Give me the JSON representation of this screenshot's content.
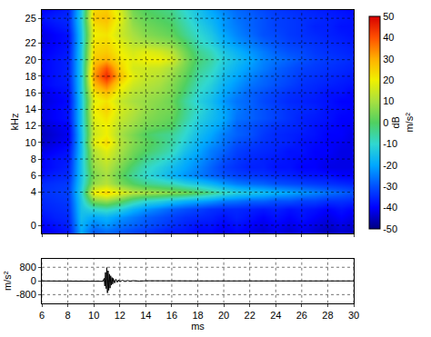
{
  "chart_data": [
    {
      "type": "heatmap",
      "ylabel": "kHz",
      "tick_labels": "y",
      "grid": true,
      "x": [
        6,
        7,
        8,
        9,
        10,
        11,
        12,
        13,
        14,
        15,
        16,
        17,
        18,
        19,
        20,
        21,
        22,
        23,
        24,
        25,
        26,
        27,
        28,
        29,
        30
      ],
      "y": [
        -1,
        0,
        1,
        2,
        3,
        4,
        5,
        6,
        7,
        8,
        9,
        10,
        11,
        12,
        13,
        14,
        15,
        16,
        17,
        18,
        19,
        20,
        21,
        22,
        23,
        24,
        25,
        26
      ],
      "z": [
        [
          -42,
          -40,
          -38,
          -20,
          -30,
          -28,
          -30,
          -32,
          -34,
          -36,
          -38,
          -38,
          -40,
          -40,
          -42,
          -40,
          -42,
          -44,
          -42,
          -44,
          -42,
          -44,
          -46,
          -44,
          -45
        ],
        [
          -40,
          -38,
          -36,
          -18,
          -25,
          -22,
          -26,
          -28,
          -30,
          -32,
          -34,
          -36,
          -38,
          -38,
          -40,
          -38,
          -40,
          -42,
          -40,
          -42,
          -40,
          -42,
          -44,
          -42,
          -44
        ],
        [
          -38,
          -36,
          -35,
          -16,
          -20,
          -18,
          -22,
          -25,
          -28,
          -30,
          -32,
          -34,
          -35,
          -36,
          -38,
          -36,
          -38,
          -40,
          -38,
          -40,
          -38,
          -40,
          -42,
          -40,
          -42
        ],
        [
          -36,
          -35,
          -34,
          -15,
          -10,
          -8,
          -12,
          -18,
          -22,
          -25,
          -28,
          -30,
          -32,
          -34,
          -35,
          -35,
          -36,
          -37,
          -36,
          -38,
          -37,
          -38,
          -40,
          -38,
          -40
        ],
        [
          -35,
          -34,
          -33,
          -14,
          5,
          8,
          2,
          -5,
          -10,
          -12,
          -15,
          -18,
          -20,
          -22,
          -25,
          -26,
          -28,
          -28,
          -30,
          -30,
          -32,
          -32,
          -34,
          -34,
          -35
        ],
        [
          -34,
          -33,
          -32,
          -12,
          20,
          25,
          18,
          12,
          10,
          8,
          6,
          4,
          0,
          -4,
          -8,
          -12,
          -14,
          -16,
          -18,
          -20,
          -22,
          -24,
          -26,
          -28,
          -30
        ],
        [
          -35,
          -34,
          -33,
          -14,
          8,
          12,
          5,
          0,
          -4,
          -6,
          -8,
          -12,
          -15,
          -18,
          -22,
          -25,
          -27,
          -28,
          -30,
          -31,
          -32,
          -33,
          -34,
          -35,
          -36
        ],
        [
          -38,
          -36,
          -35,
          -15,
          5,
          10,
          2,
          -5,
          -10,
          -14,
          -18,
          -22,
          -25,
          -28,
          -30,
          -32,
          -33,
          -34,
          -35,
          -36,
          -37,
          -38,
          -38,
          -40,
          -40
        ],
        [
          -40,
          -38,
          -36,
          -15,
          8,
          12,
          5,
          -2,
          -8,
          -12,
          -16,
          -20,
          -24,
          -28,
          -32,
          -34,
          -36,
          -36,
          -38,
          -38,
          -40,
          -40,
          -42,
          -42,
          -42
        ],
        [
          -40,
          -38,
          -37,
          -15,
          10,
          15,
          8,
          2,
          -4,
          -8,
          -12,
          -18,
          -22,
          -26,
          -30,
          -33,
          -35,
          -36,
          -37,
          -38,
          -39,
          -40,
          -41,
          -42,
          -42
        ],
        [
          -42,
          -40,
          -38,
          -16,
          12,
          18,
          10,
          4,
          0,
          -4,
          -8,
          -15,
          -20,
          -25,
          -28,
          -32,
          -34,
          -35,
          -36,
          -38,
          -38,
          -40,
          -40,
          -42,
          -42
        ],
        [
          -44,
          -42,
          -40,
          -16,
          18,
          24,
          12,
          6,
          2,
          -2,
          -6,
          -12,
          -18,
          -22,
          -26,
          -30,
          -32,
          -34,
          -35,
          -36,
          -38,
          -39,
          -40,
          -41,
          -42
        ],
        [
          -45,
          -43,
          -41,
          -16,
          15,
          20,
          10,
          5,
          0,
          -3,
          -5,
          -10,
          -16,
          -20,
          -25,
          -28,
          -30,
          -33,
          -35,
          -36,
          -37,
          -38,
          -40,
          -40,
          -42
        ],
        [
          -44,
          -42,
          -40,
          -15,
          16,
          20,
          12,
          8,
          4,
          2,
          0,
          -8,
          -14,
          -18,
          -22,
          -28,
          -30,
          -32,
          -34,
          -35,
          -36,
          -38,
          -39,
          -40,
          -41
        ],
        [
          -42,
          -40,
          -38,
          -15,
          18,
          22,
          14,
          10,
          6,
          4,
          2,
          -5,
          -12,
          -16,
          -20,
          -26,
          -28,
          -30,
          -32,
          -34,
          -36,
          -37,
          -38,
          -40,
          -40
        ],
        [
          -42,
          -40,
          -38,
          -15,
          20,
          25,
          16,
          12,
          8,
          5,
          4,
          -4,
          -10,
          -15,
          -20,
          -25,
          -28,
          -30,
          -32,
          -34,
          -35,
          -36,
          -38,
          -39,
          -40
        ],
        [
          -43,
          -41,
          -39,
          -15,
          18,
          22,
          14,
          10,
          8,
          6,
          3,
          -5,
          -12,
          -16,
          -22,
          -26,
          -28,
          -31,
          -33,
          -35,
          -36,
          -37,
          -38,
          -40,
          -40
        ],
        [
          -42,
          -40,
          -38,
          -14,
          22,
          28,
          18,
          12,
          10,
          8,
          5,
          -2,
          -10,
          -14,
          -20,
          -24,
          -28,
          -30,
          -32,
          -34,
          -35,
          -36,
          -38,
          -38,
          -40
        ],
        [
          -40,
          -38,
          -37,
          -14,
          28,
          36,
          22,
          15,
          12,
          10,
          6,
          0,
          -8,
          -12,
          -18,
          -22,
          -26,
          -28,
          -30,
          -32,
          -34,
          -35,
          -36,
          -37,
          -38
        ],
        [
          -40,
          -38,
          -36,
          -14,
          32,
          45,
          28,
          18,
          14,
          12,
          8,
          2,
          -6,
          -10,
          -16,
          -20,
          -24,
          -27,
          -29,
          -31,
          -33,
          -34,
          -35,
          -36,
          -37
        ],
        [
          -40,
          -38,
          -36,
          -14,
          30,
          40,
          25,
          16,
          15,
          14,
          10,
          4,
          -4,
          -8,
          -14,
          -18,
          -22,
          -25,
          -28,
          -30,
          -32,
          -33,
          -34,
          -35,
          -36
        ],
        [
          -40,
          -38,
          -36,
          -14,
          26,
          30,
          22,
          18,
          20,
          20,
          16,
          6,
          -2,
          -6,
          -12,
          -16,
          -20,
          -24,
          -26,
          -28,
          -30,
          -32,
          -33,
          -34,
          -35
        ],
        [
          -41,
          -39,
          -37,
          -14,
          24,
          26,
          20,
          16,
          18,
          16,
          12,
          4,
          -4,
          -8,
          -14,
          -18,
          -22,
          -25,
          -28,
          -30,
          -31,
          -33,
          -34,
          -35,
          -36
        ],
        [
          -42,
          -40,
          -38,
          -15,
          22,
          24,
          18,
          12,
          10,
          8,
          6,
          0,
          -8,
          -12,
          -18,
          -22,
          -25,
          -28,
          -30,
          -32,
          -33,
          -34,
          -35,
          -36,
          -37
        ],
        [
          -42,
          -40,
          -38,
          -15,
          20,
          22,
          15,
          10,
          6,
          4,
          2,
          -4,
          -10,
          -14,
          -20,
          -24,
          -27,
          -30,
          -31,
          -33,
          -34,
          -35,
          -36,
          -37,
          -38
        ],
        [
          -40,
          -38,
          -36,
          -14,
          22,
          25,
          16,
          8,
          4,
          2,
          0,
          -6,
          -12,
          -16,
          -22,
          -25,
          -28,
          -30,
          -32,
          -33,
          -34,
          -36,
          -36,
          -38,
          -38
        ],
        [
          -38,
          -36,
          -35,
          -13,
          26,
          28,
          18,
          6,
          2,
          0,
          -2,
          -8,
          -14,
          -18,
          -22,
          -26,
          -28,
          -30,
          -32,
          -33,
          -34,
          -35,
          -36,
          -37,
          -38
        ],
        [
          -40,
          -38,
          -36,
          -14,
          24,
          26,
          16,
          4,
          0,
          -2,
          -4,
          -10,
          -15,
          -20,
          -24,
          -27,
          -29,
          -31,
          -33,
          -34,
          -35,
          -36,
          -37,
          -38,
          -39
        ]
      ],
      "xlim": [
        6,
        30
      ],
      "xticks": [
        6,
        8,
        10,
        12,
        14,
        16,
        18,
        20,
        22,
        24,
        26,
        28,
        30
      ],
      "ylim": [
        -1,
        26
      ],
      "yticks": [
        0,
        4,
        6,
        8,
        10,
        12,
        14,
        16,
        18,
        20,
        22,
        25
      ],
      "zlim": [
        -50,
        50
      ],
      "zticks": [
        -50,
        -40,
        -30,
        -20,
        -10,
        0,
        10,
        20,
        30,
        40,
        50
      ],
      "colorbar_title": [
        "dB",
        "m/s²"
      ]
    },
    {
      "type": "line",
      "xlabel": "ms",
      "ylabel": "m/s²",
      "grid": true,
      "color": "#000000",
      "x": [
        6,
        7,
        8,
        9,
        10,
        10.5,
        10.7,
        10.8,
        10.85,
        10.9,
        10.95,
        11.0,
        11.05,
        11.1,
        11.15,
        11.2,
        11.25,
        11.3,
        11.35,
        11.4,
        11.45,
        11.5,
        11.6,
        11.7,
        11.8,
        11.9,
        12.0,
        12.2,
        12.4,
        12.6,
        12.8,
        13.0,
        13.5,
        14,
        15,
        16,
        16.2,
        16.5,
        18,
        20,
        22,
        24,
        26,
        28,
        30
      ],
      "values": [
        0,
        0,
        0,
        0,
        0,
        5,
        -20,
        150,
        -300,
        500,
        -450,
        780,
        -700,
        600,
        -550,
        400,
        -420,
        300,
        -250,
        200,
        -180,
        150,
        -120,
        100,
        -80,
        60,
        -50,
        40,
        -30,
        25,
        -20,
        15,
        -10,
        8,
        -5,
        20,
        -20,
        5,
        0,
        0,
        0,
        0,
        0,
        0,
        0
      ],
      "xlim": [
        6,
        30
      ],
      "xticks": [
        6,
        8,
        10,
        12,
        14,
        16,
        18,
        20,
        22,
        24,
        26,
        28,
        30
      ],
      "ylim": [
        -1300,
        1300
      ],
      "yticks": [
        -800,
        0,
        800
      ]
    }
  ]
}
